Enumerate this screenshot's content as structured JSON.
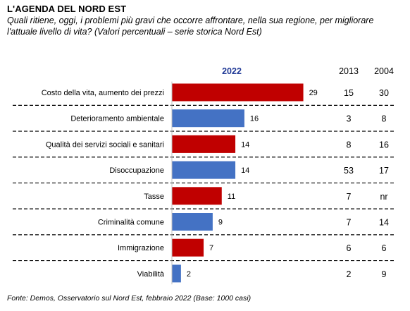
{
  "header": {
    "title": "L'AGENDA DEL NORD EST",
    "subtitle": "Quali ritiene, oggi, i problemi più gravi che occorre affrontare, nella sua regione, per migliorare l'attuale livello di vita? (Valori percentuali – serie storica Nord Est)"
  },
  "footer": {
    "source": "Fonte: Demos, Osservatorio sul Nord Est, febbraio 2022 (Base: 1000 casi)"
  },
  "chart_data": {
    "type": "bar",
    "orientation": "horizontal",
    "categories": [
      "Costo della vita, aumento dei prezzi",
      "Deterioramento ambientale",
      "Qualità dei servizi sociali e sanitari",
      "Disoccupazione",
      "Tasse",
      "Criminalità comune",
      "Immigrazione",
      "Viabilità"
    ],
    "series": [
      {
        "name": "2022",
        "values": [
          29,
          16,
          14,
          14,
          11,
          9,
          7,
          2
        ]
      }
    ],
    "table_columns": [
      {
        "name": "2013",
        "values": [
          "15",
          "3",
          "8",
          "53",
          "7",
          "7",
          "6",
          "2"
        ]
      },
      {
        "name": "2004",
        "values": [
          "30",
          "8",
          "16",
          "17",
          "nr",
          "14",
          "6",
          "9"
        ]
      }
    ],
    "bar_colors": [
      "#c00000",
      "#4472c4",
      "#c00000",
      "#4472c4",
      "#c00000",
      "#4472c4",
      "#c00000",
      "#4472c4"
    ],
    "header_color": "#1f3896",
    "xlim": [
      0,
      30
    ]
  }
}
